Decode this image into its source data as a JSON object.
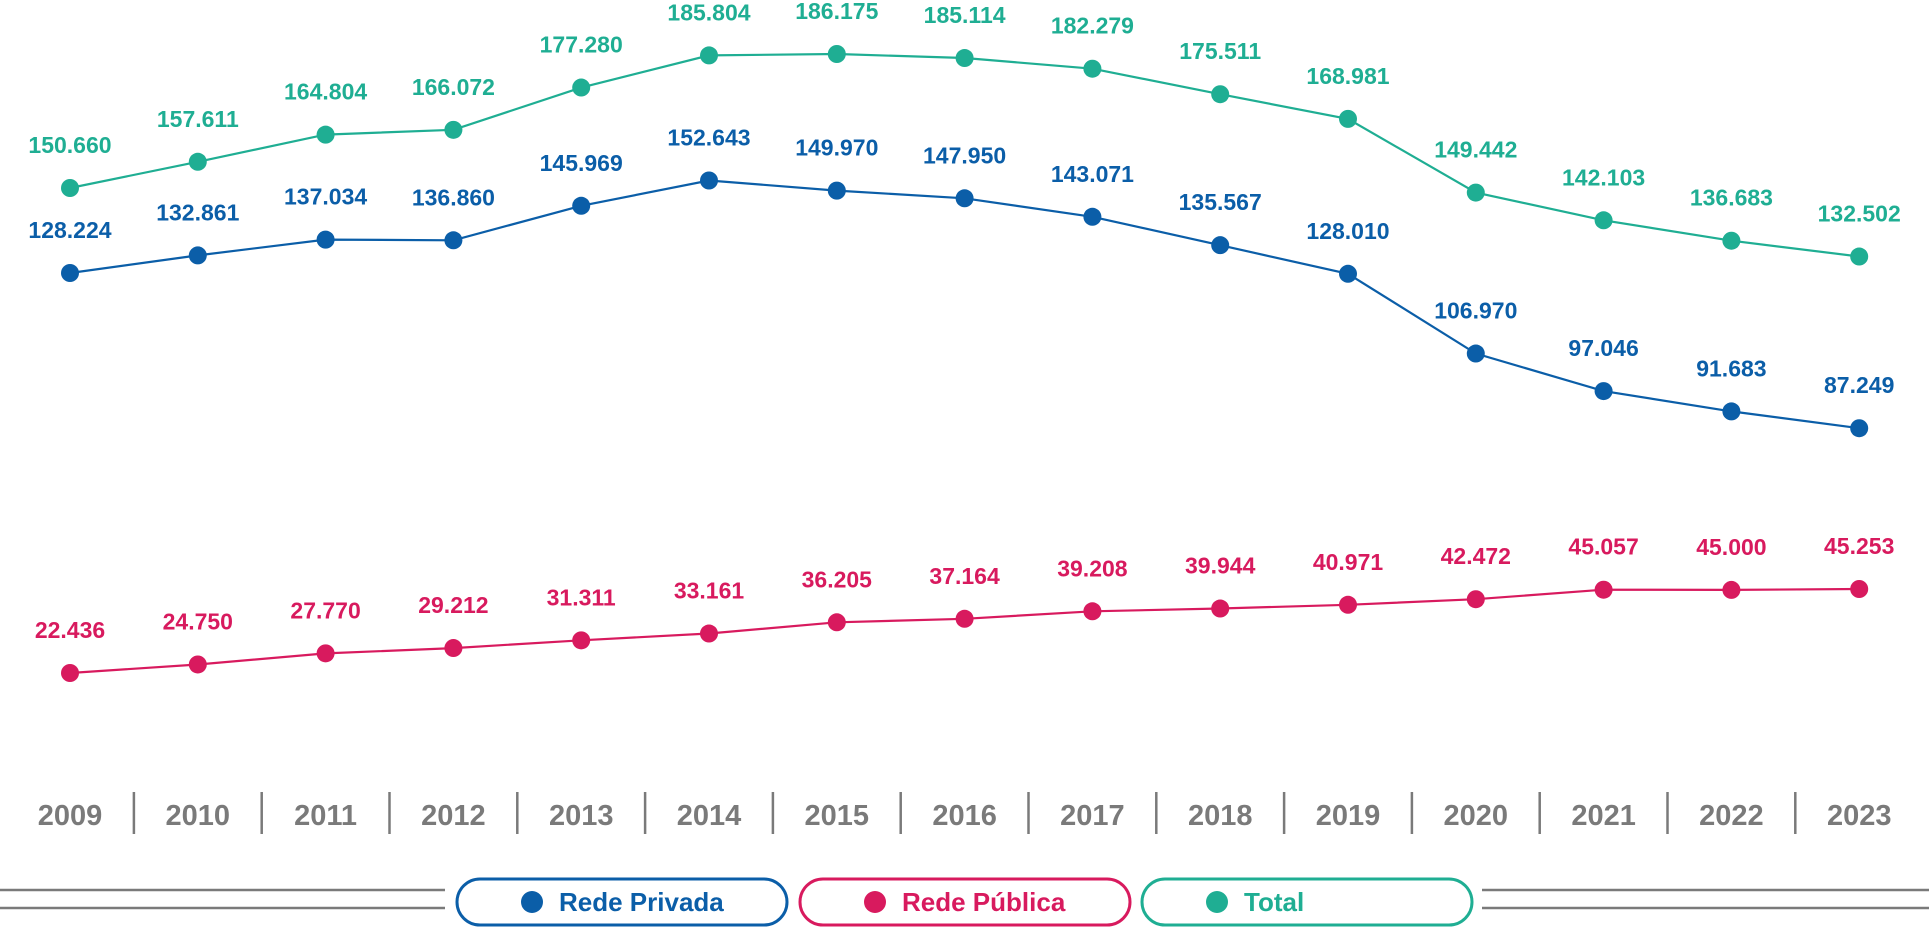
{
  "chart_data": {
    "type": "line",
    "categories": [
      "2009",
      "2010",
      "2011",
      "2012",
      "2013",
      "2014",
      "2015",
      "2016",
      "2017",
      "2018",
      "2019",
      "2020",
      "2021",
      "2022",
      "2023"
    ],
    "series": [
      {
        "key": "privada",
        "name": "Rede Privada",
        "color": "#0b5ea8",
        "values": [
          128224,
          132861,
          137034,
          136860,
          145969,
          152643,
          149970,
          147950,
          143071,
          135567,
          128010,
          106970,
          97046,
          91683,
          87249
        ],
        "labels": [
          "128.224",
          "132.861",
          "137.034",
          "136.860",
          "145.969",
          "152.643",
          "149.970",
          "147.950",
          "143.071",
          "135.567",
          "128.010",
          "106.970",
          "97.046",
          "91.683",
          "87.249"
        ]
      },
      {
        "key": "publica",
        "name": "Rede Pública",
        "color": "#d81a5e",
        "values": [
          22436,
          24750,
          27770,
          29212,
          31311,
          33161,
          36205,
          37164,
          39208,
          39944,
          40971,
          42472,
          45057,
          45000,
          45253
        ],
        "labels": [
          "22.436",
          "24.750",
          "27.770",
          "29.212",
          "31.311",
          "33.161",
          "36.205",
          "37.164",
          "39.208",
          "39.944",
          "40.971",
          "42.472",
          "45.057",
          "45.000",
          "45.253"
        ]
      },
      {
        "key": "total",
        "name": "Total",
        "color": "#1fae93",
        "values": [
          150660,
          157611,
          164804,
          166072,
          177280,
          185804,
          186175,
          185114,
          182279,
          175511,
          168981,
          149442,
          142103,
          136683,
          132502
        ],
        "labels": [
          "150.660",
          "157.611",
          "164.804",
          "166.072",
          "177.280",
          "185.804",
          "186.175",
          "185.114",
          "182.279",
          "175.511",
          "168.981",
          "149.442",
          "142.103",
          "136.683",
          "132.502"
        ]
      }
    ],
    "legend": [
      "Rede Privada",
      "Rede Pública",
      "Total"
    ],
    "legend_position": "bottom",
    "title": "",
    "xlabel": "",
    "ylabel": "",
    "grid": false,
    "axis_color": "#7a7a7a"
  }
}
